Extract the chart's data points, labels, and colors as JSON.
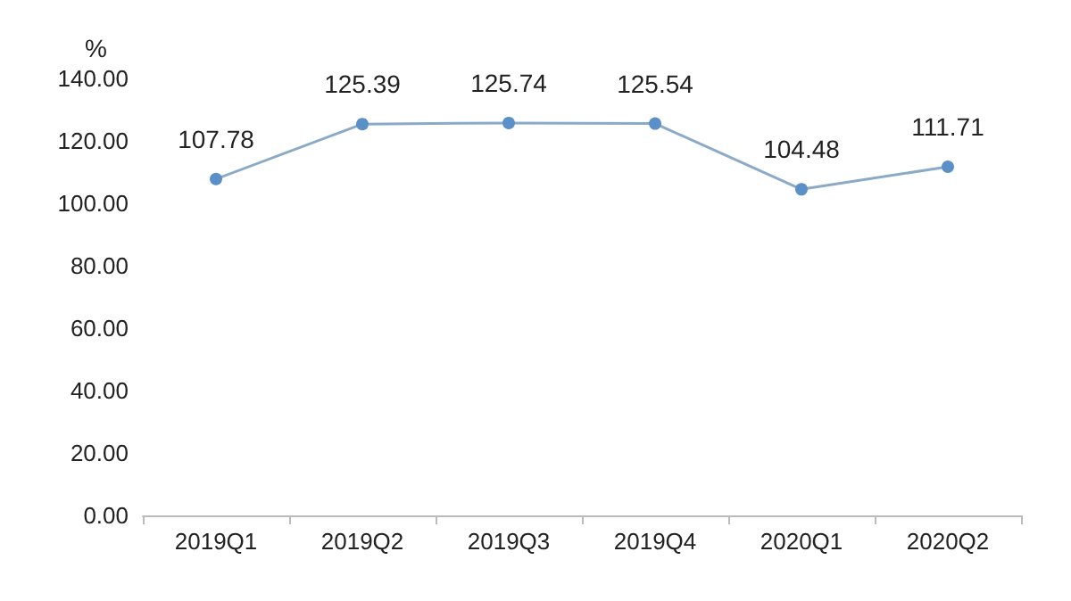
{
  "chart_data": {
    "type": "line",
    "ylabel": "%",
    "categories": [
      "2019Q1",
      "2019Q2",
      "2019Q3",
      "2019Q4",
      "2020Q1",
      "2020Q2"
    ],
    "series": [
      {
        "color": "#5b8fc7",
        "values": [
          107.78,
          125.39,
          125.74,
          125.54,
          104.48,
          111.71
        ]
      }
    ],
    "ylim": [
      0,
      140
    ],
    "yticks": [
      {
        "value": 0,
        "label": "0.00"
      },
      {
        "value": 20,
        "label": "20.00"
      },
      {
        "value": 40,
        "label": "40.00"
      },
      {
        "value": 60,
        "label": "60.00"
      },
      {
        "value": 80,
        "label": "80.00"
      },
      {
        "value": 100,
        "label": "100.00"
      },
      {
        "value": 120,
        "label": "120.00"
      },
      {
        "value": 140,
        "label": "140.00"
      }
    ],
    "grid": false,
    "marker": "circle",
    "line_style": "solid",
    "data_labels": true
  }
}
